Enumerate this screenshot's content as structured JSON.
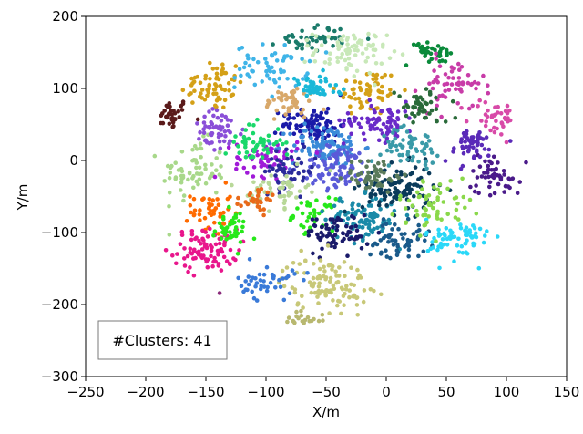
{
  "chart_data": {
    "type": "scatter",
    "title": "",
    "xlabel": "X/m",
    "ylabel": "Y/m",
    "xlim": [
      -250,
      150
    ],
    "ylim": [
      -300,
      200
    ],
    "xticks": [
      "−250",
      "−200",
      "−150",
      "−100",
      "−50",
      "0",
      "50",
      "100",
      "150"
    ],
    "xtick_values": [
      -250,
      -200,
      -150,
      -100,
      -50,
      0,
      50,
      100,
      150
    ],
    "yticks": [
      "−300",
      "−200",
      "−100",
      "0",
      "100",
      "200"
    ],
    "ytick_values": [
      -300,
      -200,
      -100,
      0,
      100,
      200
    ],
    "grid": false,
    "legend": "none",
    "annotation": "#Clusters: 41",
    "annotation_position": "bottom-left",
    "cluster_count": 41,
    "clusters": [
      {
        "color": "#5a1a1a",
        "center": [
          -180,
          65
        ],
        "spread": [
          14,
          18
        ],
        "n": 40
      },
      {
        "color": "#d4a017",
        "center": [
          -145,
          105
        ],
        "spread": [
          22,
          30
        ],
        "n": 70
      },
      {
        "color": "#d4a017",
        "center": [
          -15,
          95
        ],
        "spread": [
          22,
          28
        ],
        "n": 60
      },
      {
        "color": "#a8d88a",
        "center": [
          -160,
          -15
        ],
        "spread": [
          22,
          35
        ],
        "n": 70
      },
      {
        "color": "#ff6a00",
        "center": [
          -145,
          -70
        ],
        "spread": [
          14,
          28
        ],
        "n": 45
      },
      {
        "color": "#e8168c",
        "center": [
          -150,
          -125
        ],
        "spread": [
          22,
          25
        ],
        "n": 90
      },
      {
        "color": "#27e81a",
        "center": [
          -130,
          -95
        ],
        "spread": [
          12,
          20
        ],
        "n": 45
      },
      {
        "color": "#27e81a",
        "center": [
          -60,
          -75
        ],
        "spread": [
          14,
          18
        ],
        "n": 35
      },
      {
        "color": "#8a4fd8",
        "center": [
          -140,
          40
        ],
        "spread": [
          18,
          25
        ],
        "n": 55
      },
      {
        "color": "#3fb4e8",
        "center": [
          -95,
          130
        ],
        "spread": [
          25,
          25
        ],
        "n": 60
      },
      {
        "color": "#1a7a6a",
        "center": [
          -60,
          170
        ],
        "spread": [
          25,
          15
        ],
        "n": 45
      },
      {
        "color": "#c8e8b8",
        "center": [
          -30,
          150
        ],
        "spread": [
          25,
          25
        ],
        "n": 80
      },
      {
        "color": "#0a8a3a",
        "center": [
          40,
          155
        ],
        "spread": [
          22,
          18
        ],
        "n": 55
      },
      {
        "color": "#c83ca8",
        "center": [
          55,
          105
        ],
        "spread": [
          22,
          30
        ],
        "n": 60
      },
      {
        "color": "#d84aa8",
        "center": [
          90,
          60
        ],
        "spread": [
          18,
          22
        ],
        "n": 40
      },
      {
        "color": "#1a1aa8",
        "center": [
          -60,
          50
        ],
        "spread": [
          22,
          20
        ],
        "n": 90
      },
      {
        "color": "#3a8ad8",
        "center": [
          -50,
          20
        ],
        "spread": [
          25,
          25
        ],
        "n": 100
      },
      {
        "color": "#5a5ad8",
        "center": [
          -40,
          -10
        ],
        "spread": [
          25,
          25
        ],
        "n": 90
      },
      {
        "color": "#6a2ac8",
        "center": [
          -5,
          55
        ],
        "spread": [
          25,
          22
        ],
        "n": 80
      },
      {
        "color": "#a01ad8",
        "center": [
          -100,
          5
        ],
        "spread": [
          22,
          22
        ],
        "n": 60
      },
      {
        "color": "#2a2a9a",
        "center": [
          -80,
          -15
        ],
        "spread": [
          18,
          22
        ],
        "n": 50
      },
      {
        "color": "#1ad86a",
        "center": [
          -110,
          25
        ],
        "spread": [
          20,
          22
        ],
        "n": 50
      },
      {
        "color": "#1a8aa8",
        "center": [
          -20,
          -80
        ],
        "spread": [
          25,
          25
        ],
        "n": 100
      },
      {
        "color": "#0a3a5a",
        "center": [
          10,
          -40
        ],
        "spread": [
          25,
          28
        ],
        "n": 110
      },
      {
        "color": "#1a1a6a",
        "center": [
          -40,
          -100
        ],
        "spread": [
          22,
          22
        ],
        "n": 70
      },
      {
        "color": "#1a5a8a",
        "center": [
          10,
          -110
        ],
        "spread": [
          22,
          20
        ],
        "n": 60
      },
      {
        "color": "#c8c878",
        "center": [
          -50,
          -170
        ],
        "spread": [
          30,
          30
        ],
        "n": 110
      },
      {
        "color": "#b8b870",
        "center": [
          -70,
          -220
        ],
        "spread": [
          18,
          12
        ],
        "n": 20
      },
      {
        "color": "#2ad8f8",
        "center": [
          60,
          -110
        ],
        "spread": [
          22,
          25
        ],
        "n": 70
      },
      {
        "color": "#3a7ad8",
        "center": [
          -100,
          -170
        ],
        "spread": [
          20,
          20
        ],
        "n": 45
      },
      {
        "color": "#8ad84a",
        "center": [
          40,
          -60
        ],
        "spread": [
          25,
          30
        ],
        "n": 60
      },
      {
        "color": "#4a1a8a",
        "center": [
          90,
          -20
        ],
        "spread": [
          18,
          25
        ],
        "n": 50
      },
      {
        "color": "#5a2ab8",
        "center": [
          70,
          20
        ],
        "spread": [
          20,
          20
        ],
        "n": 50
      },
      {
        "color": "#3a9aa8",
        "center": [
          20,
          20
        ],
        "spread": [
          20,
          20
        ],
        "n": 60
      },
      {
        "color": "#5a7a5a",
        "center": [
          -10,
          -20
        ],
        "spread": [
          20,
          20
        ],
        "n": 50
      },
      {
        "color": "#d8a86a",
        "center": [
          -80,
          80
        ],
        "spread": [
          18,
          18
        ],
        "n": 45
      },
      {
        "color": "#b8d898",
        "center": [
          -90,
          -40
        ],
        "spread": [
          20,
          20
        ],
        "n": 50
      },
      {
        "color": "#8a2a7a",
        "center": [
          -150,
          -200
        ],
        "spread": [
          14,
          12
        ],
        "n": 15
      },
      {
        "color": "#1ab8d8",
        "center": [
          -60,
          100
        ],
        "spread": [
          18,
          15
        ],
        "n": 45
      },
      {
        "color": "#2a6a3a",
        "center": [
          30,
          75
        ],
        "spread": [
          18,
          20
        ],
        "n": 50
      },
      {
        "color": "#e86a1a",
        "center": [
          -105,
          -55
        ],
        "spread": [
          14,
          14
        ],
        "n": 30
      }
    ]
  }
}
